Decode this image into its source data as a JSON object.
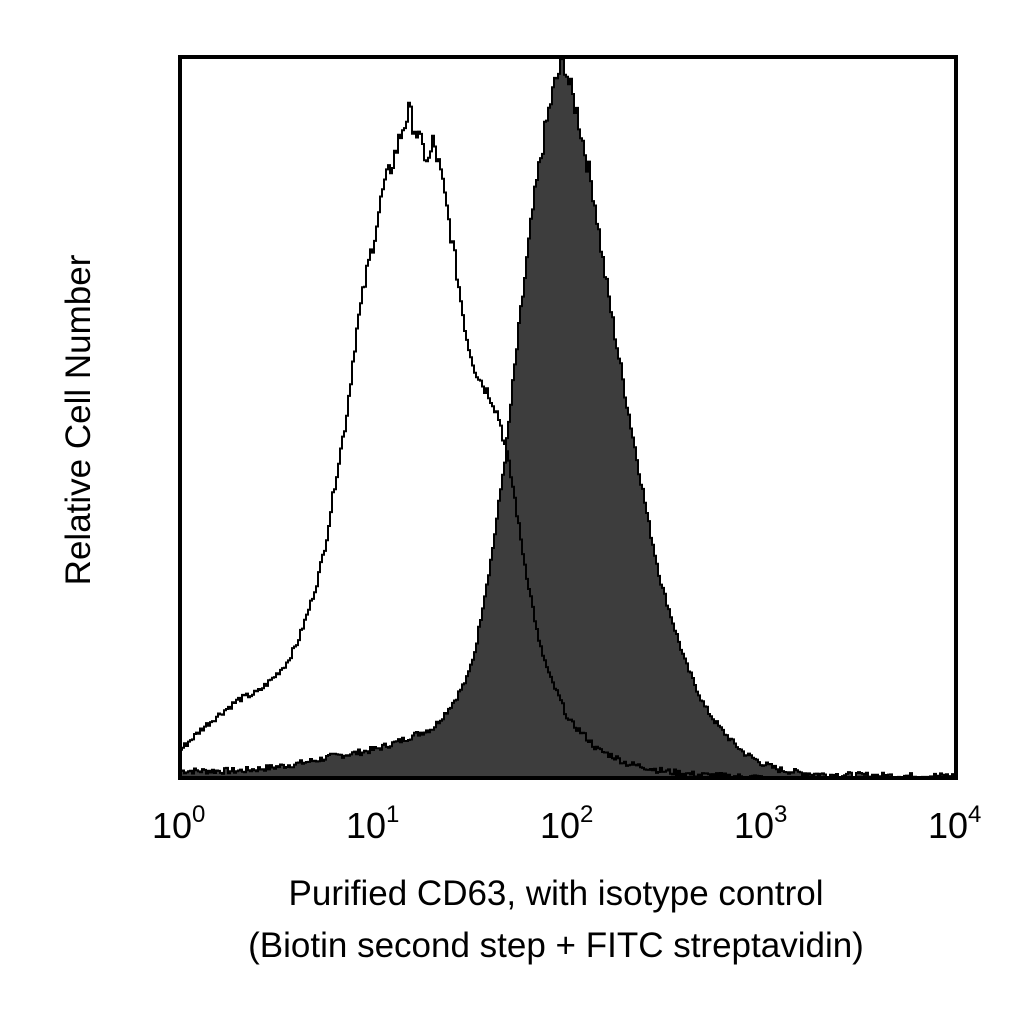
{
  "chart_data": {
    "type": "area",
    "x_scale": "log",
    "xlim": [
      1,
      10000
    ],
    "ylim": [
      0,
      1
    ],
    "grid": false,
    "legend": "none",
    "x_ticks": [
      {
        "value": 1,
        "base": "10",
        "exp": "0"
      },
      {
        "value": 10,
        "base": "10",
        "exp": "1"
      },
      {
        "value": 100,
        "base": "10",
        "exp": "2"
      },
      {
        "value": 1000,
        "base": "10",
        "exp": "3"
      },
      {
        "value": 10000,
        "base": "10",
        "exp": "4"
      }
    ],
    "xlabel_lines": [
      "Purified CD63, with isotype control",
      "(Biotin second step + FITC streptavidin)"
    ],
    "ylabel": "Relative Cell Number",
    "series": [
      {
        "style": "open-outline",
        "color": "#000000",
        "x": [
          1,
          1.3,
          1.6,
          2.0,
          2.5,
          3.0,
          3.5,
          4.0,
          4.5,
          5.0,
          5.6,
          6.3,
          7.1,
          8.0,
          9.0,
          10,
          11,
          12,
          13,
          14,
          15,
          16,
          17.5,
          19,
          20,
          22,
          24,
          26,
          28,
          30,
          33,
          36,
          40,
          44,
          48,
          52,
          56,
          60,
          65,
          70,
          80,
          90,
          100,
          120,
          140,
          170,
          200,
          250,
          300,
          400,
          500,
          700,
          1000
        ],
        "y": [
          0.04,
          0.07,
          0.09,
          0.11,
          0.12,
          0.14,
          0.16,
          0.19,
          0.23,
          0.27,
          0.33,
          0.42,
          0.5,
          0.62,
          0.7,
          0.76,
          0.82,
          0.85,
          0.88,
          0.91,
          0.93,
          0.91,
          0.88,
          0.86,
          0.89,
          0.84,
          0.78,
          0.72,
          0.66,
          0.61,
          0.57,
          0.55,
          0.53,
          0.5,
          0.45,
          0.4,
          0.34,
          0.29,
          0.24,
          0.19,
          0.14,
          0.11,
          0.08,
          0.06,
          0.04,
          0.03,
          0.02,
          0.015,
          0.01,
          0.006,
          0.004,
          0.002,
          0.001
        ]
      },
      {
        "style": "filled",
        "color": "#3d3d3d",
        "x": [
          1,
          1.5,
          2,
          3,
          4,
          5,
          6,
          8,
          10,
          13,
          16,
          20,
          23,
          26,
          30,
          33,
          36,
          40,
          44,
          48,
          52,
          56,
          60,
          65,
          70,
          75,
          80,
          85,
          90,
          95,
          100,
          110,
          120,
          135,
          150,
          170,
          200,
          230,
          260,
          300,
          350,
          400,
          500,
          600,
          700,
          800,
          1000,
          1200,
          1500,
          2000,
          3000,
          5000,
          7000,
          10000
        ],
        "y": [
          0.01,
          0.01,
          0.01,
          0.015,
          0.02,
          0.025,
          0.03,
          0.035,
          0.04,
          0.05,
          0.06,
          0.07,
          0.09,
          0.11,
          0.14,
          0.18,
          0.24,
          0.31,
          0.39,
          0.47,
          0.56,
          0.64,
          0.71,
          0.79,
          0.85,
          0.9,
          0.94,
          0.97,
          0.99,
          1.0,
          0.97,
          0.93,
          0.88,
          0.81,
          0.72,
          0.63,
          0.52,
          0.43,
          0.35,
          0.27,
          0.21,
          0.16,
          0.1,
          0.07,
          0.05,
          0.035,
          0.02,
          0.012,
          0.008,
          0.005,
          0.004,
          0.003,
          0.003,
          0.003
        ]
      }
    ]
  }
}
